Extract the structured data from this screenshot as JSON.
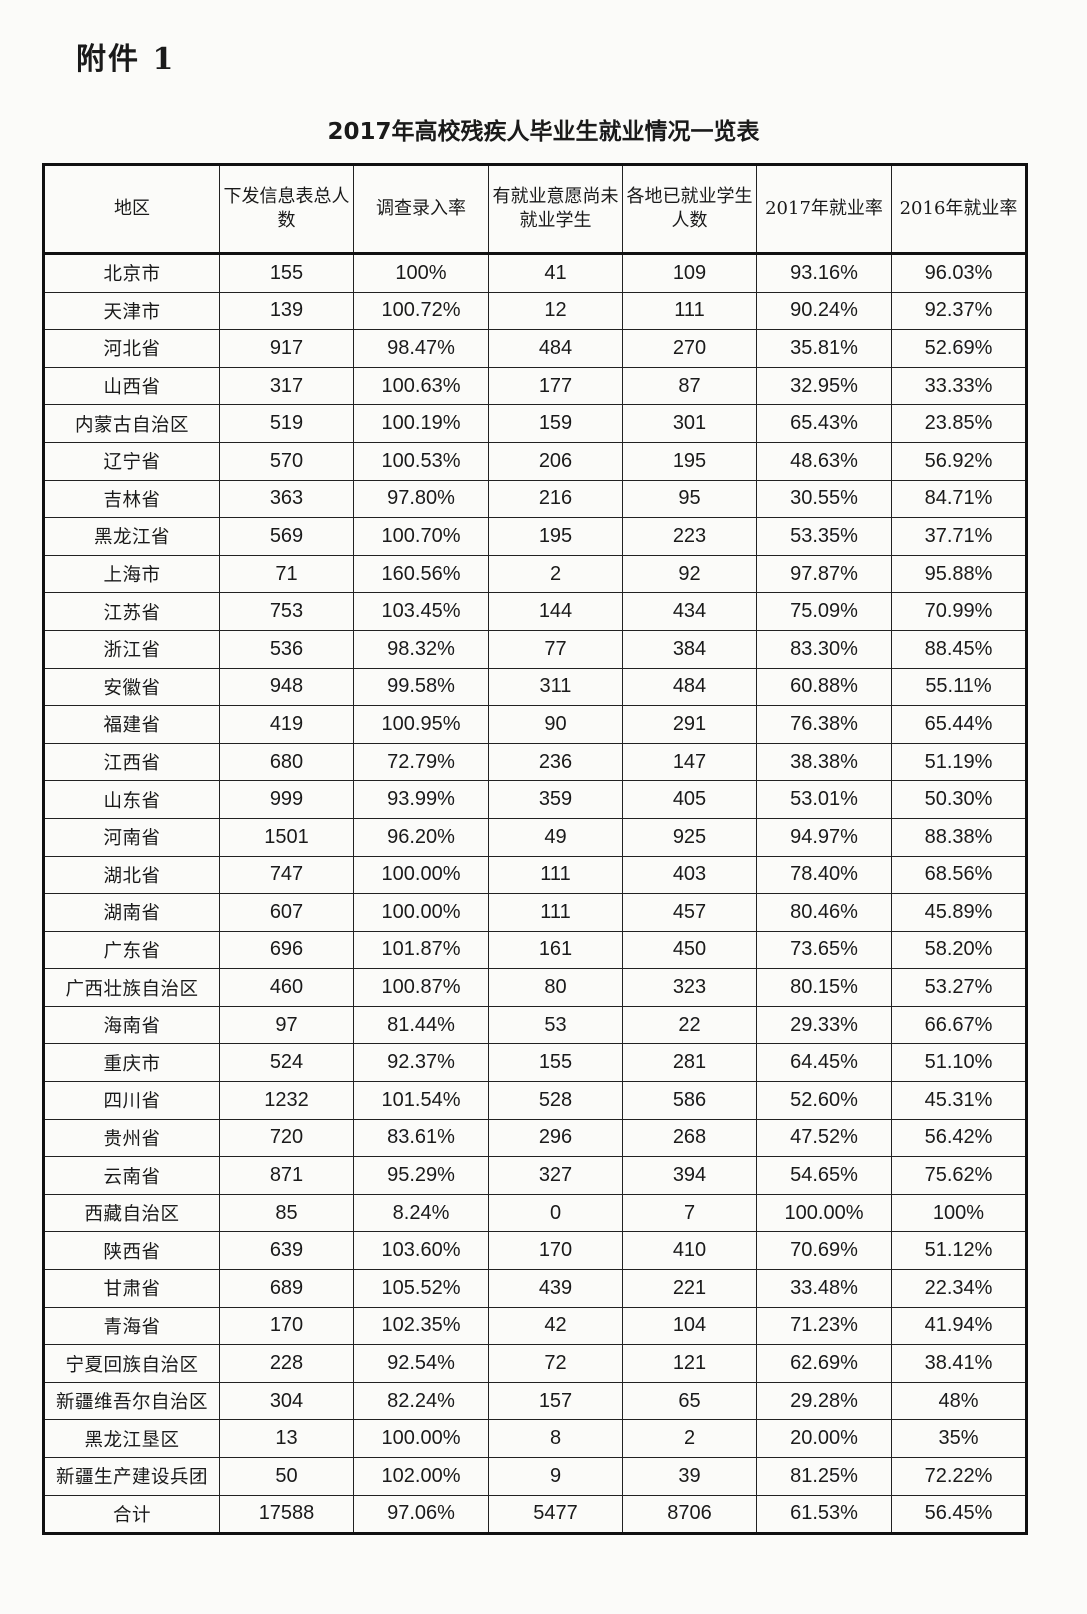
{
  "attachment_label": "附件 1",
  "title": "2017年高校残疾人毕业生就业情况一览表",
  "table": {
    "headers": [
      "地区",
      "下发信息表总人数",
      "调查录入率",
      "有就业意愿尚未就业学生",
      "各地已就业学生人数",
      "2017年就业率",
      "2016年就业率"
    ],
    "rows": [
      [
        "北京市",
        "155",
        "100%",
        "41",
        "109",
        "93.16%",
        "96.03%"
      ],
      [
        "天津市",
        "139",
        "100.72%",
        "12",
        "111",
        "90.24%",
        "92.37%"
      ],
      [
        "河北省",
        "917",
        "98.47%",
        "484",
        "270",
        "35.81%",
        "52.69%"
      ],
      [
        "山西省",
        "317",
        "100.63%",
        "177",
        "87",
        "32.95%",
        "33.33%"
      ],
      [
        "内蒙古自治区",
        "519",
        "100.19%",
        "159",
        "301",
        "65.43%",
        "23.85%"
      ],
      [
        "辽宁省",
        "570",
        "100.53%",
        "206",
        "195",
        "48.63%",
        "56.92%"
      ],
      [
        "吉林省",
        "363",
        "97.80%",
        "216",
        "95",
        "30.55%",
        "84.71%"
      ],
      [
        "黑龙江省",
        "569",
        "100.70%",
        "195",
        "223",
        "53.35%",
        "37.71%"
      ],
      [
        "上海市",
        "71",
        "160.56%",
        "2",
        "92",
        "97.87%",
        "95.88%"
      ],
      [
        "江苏省",
        "753",
        "103.45%",
        "144",
        "434",
        "75.09%",
        "70.99%"
      ],
      [
        "浙江省",
        "536",
        "98.32%",
        "77",
        "384",
        "83.30%",
        "88.45%"
      ],
      [
        "安徽省",
        "948",
        "99.58%",
        "311",
        "484",
        "60.88%",
        "55.11%"
      ],
      [
        "福建省",
        "419",
        "100.95%",
        "90",
        "291",
        "76.38%",
        "65.44%"
      ],
      [
        "江西省",
        "680",
        "72.79%",
        "236",
        "147",
        "38.38%",
        "51.19%"
      ],
      [
        "山东省",
        "999",
        "93.99%",
        "359",
        "405",
        "53.01%",
        "50.30%"
      ],
      [
        "河南省",
        "1501",
        "96.20%",
        "49",
        "925",
        "94.97%",
        "88.38%"
      ],
      [
        "湖北省",
        "747",
        "100.00%",
        "111",
        "403",
        "78.40%",
        "68.56%"
      ],
      [
        "湖南省",
        "607",
        "100.00%",
        "111",
        "457",
        "80.46%",
        "45.89%"
      ],
      [
        "广东省",
        "696",
        "101.87%",
        "161",
        "450",
        "73.65%",
        "58.20%"
      ],
      [
        "广西壮族自治区",
        "460",
        "100.87%",
        "80",
        "323",
        "80.15%",
        "53.27%"
      ],
      [
        "海南省",
        "97",
        "81.44%",
        "53",
        "22",
        "29.33%",
        "66.67%"
      ],
      [
        "重庆市",
        "524",
        "92.37%",
        "155",
        "281",
        "64.45%",
        "51.10%"
      ],
      [
        "四川省",
        "1232",
        "101.54%",
        "528",
        "586",
        "52.60%",
        "45.31%"
      ],
      [
        "贵州省",
        "720",
        "83.61%",
        "296",
        "268",
        "47.52%",
        "56.42%"
      ],
      [
        "云南省",
        "871",
        "95.29%",
        "327",
        "394",
        "54.65%",
        "75.62%"
      ],
      [
        "西藏自治区",
        "85",
        "8.24%",
        "0",
        "7",
        "100.00%",
        "100%"
      ],
      [
        "陕西省",
        "639",
        "103.60%",
        "170",
        "410",
        "70.69%",
        "51.12%"
      ],
      [
        "甘肃省",
        "689",
        "105.52%",
        "439",
        "221",
        "33.48%",
        "22.34%"
      ],
      [
        "青海省",
        "170",
        "102.35%",
        "42",
        "104",
        "71.23%",
        "41.94%"
      ],
      [
        "宁夏回族自治区",
        "228",
        "92.54%",
        "72",
        "121",
        "62.69%",
        "38.41%"
      ],
      [
        "新疆维吾尔自治区",
        "304",
        "82.24%",
        "157",
        "65",
        "29.28%",
        "48%"
      ],
      [
        "黑龙江垦区",
        "13",
        "100.00%",
        "8",
        "2",
        "20.00%",
        "35%"
      ],
      [
        "新疆生产建设兵团",
        "50",
        "102.00%",
        "9",
        "39",
        "81.25%",
        "72.22%"
      ],
      [
        "合计",
        "17588",
        "97.06%",
        "5477",
        "8706",
        "61.53%",
        "56.45%"
      ]
    ]
  }
}
